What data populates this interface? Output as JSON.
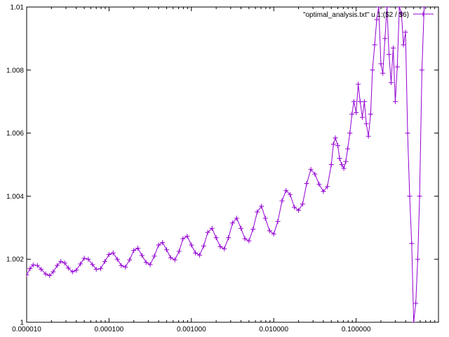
{
  "chart_data": {
    "type": "line",
    "title": "",
    "xlabel": "",
    "ylabel": "",
    "xscale": "log",
    "xlim": [
      1e-05,
      1
    ],
    "ylim": [
      1,
      1.01
    ],
    "grid": false,
    "legend_position": "top-right",
    "series_color": "#9400d3",
    "marker": "plus",
    "x_ticks": [
      {
        "value": 1e-05,
        "label": "0.000010"
      },
      {
        "value": 0.0001,
        "label": "0.000100"
      },
      {
        "value": 0.001,
        "label": "0.001000"
      },
      {
        "value": 0.01,
        "label": "0.010000"
      },
      {
        "value": 0.1,
        "label": "0.100000"
      }
    ],
    "y_ticks": [
      {
        "value": 1,
        "label": "1"
      },
      {
        "value": 1.002,
        "label": "1.002"
      },
      {
        "value": 1.004,
        "label": "1.004"
      },
      {
        "value": 1.006,
        "label": "1.006"
      },
      {
        "value": 1.008,
        "label": "1.008"
      },
      {
        "value": 1.01,
        "label": "1.01"
      }
    ],
    "series": [
      {
        "name": "\"optimal_analysis.txt\" u 1:($2 / $6)",
        "points": [
          [
            1e-05,
            1.0015
          ],
          [
            1.1e-05,
            1.0017
          ],
          [
            1.2e-05,
            1.00182
          ],
          [
            1.35e-05,
            1.0018
          ],
          [
            1.5e-05,
            1.00168
          ],
          [
            1.7e-05,
            1.00153
          ],
          [
            1.9e-05,
            1.00148
          ],
          [
            2.1e-05,
            1.0016
          ],
          [
            2.35e-05,
            1.0018
          ],
          [
            2.6e-05,
            1.00193
          ],
          [
            2.9e-05,
            1.00188
          ],
          [
            3.2e-05,
            1.00172
          ],
          [
            3.6e-05,
            1.0016
          ],
          [
            4e-05,
            1.00165
          ],
          [
            4.5e-05,
            1.00185
          ],
          [
            5e-05,
            1.00203
          ],
          [
            5.6e-05,
            1.002
          ],
          [
            6.3e-05,
            1.00183
          ],
          [
            7e-05,
            1.00168
          ],
          [
            7.9e-05,
            1.0017
          ],
          [
            8.9e-05,
            1.00193
          ],
          [
            0.0001,
            1.00215
          ],
          [
            0.000112,
            1.0022
          ],
          [
            0.000126,
            1.002
          ],
          [
            0.000141,
            1.0018
          ],
          [
            0.000158,
            1.00175
          ],
          [
            0.000178,
            1.00198
          ],
          [
            0.0002,
            1.00228
          ],
          [
            0.000224,
            1.00235
          ],
          [
            0.000251,
            1.00212
          ],
          [
            0.000282,
            1.0019
          ],
          [
            0.000316,
            1.00183
          ],
          [
            0.000355,
            1.0021
          ],
          [
            0.0004,
            1.00245
          ],
          [
            0.000447,
            1.00253
          ],
          [
            0.0005,
            1.0023
          ],
          [
            0.00056,
            1.00205
          ],
          [
            0.00063,
            1.00198
          ],
          [
            0.00071,
            1.00225
          ],
          [
            0.00079,
            1.00265
          ],
          [
            0.00089,
            1.00273
          ],
          [
            0.001,
            1.00245
          ],
          [
            0.00112,
            1.0022
          ],
          [
            0.00126,
            1.00213
          ],
          [
            0.00141,
            1.00242
          ],
          [
            0.00158,
            1.00285
          ],
          [
            0.00178,
            1.00298
          ],
          [
            0.002,
            1.00268
          ],
          [
            0.00224,
            1.0024
          ],
          [
            0.00251,
            1.00233
          ],
          [
            0.00282,
            1.00268
          ],
          [
            0.00316,
            1.00315
          ],
          [
            0.00355,
            1.0033
          ],
          [
            0.004,
            1.00298
          ],
          [
            0.00447,
            1.00265
          ],
          [
            0.005,
            1.00258
          ],
          [
            0.0056,
            1.00295
          ],
          [
            0.0063,
            1.0035
          ],
          [
            0.0071,
            1.00368
          ],
          [
            0.0079,
            1.0033
          ],
          [
            0.0089,
            1.0029
          ],
          [
            0.01,
            1.0028
          ],
          [
            0.0112,
            1.0032
          ],
          [
            0.0126,
            1.00385
          ],
          [
            0.0141,
            1.00418
          ],
          [
            0.0158,
            1.00405
          ],
          [
            0.0178,
            1.00365
          ],
          [
            0.02,
            1.00355
          ],
          [
            0.0224,
            1.00375
          ],
          [
            0.0251,
            1.0044
          ],
          [
            0.0282,
            1.00485
          ],
          [
            0.0316,
            1.0047
          ],
          [
            0.0355,
            1.00438
          ],
          [
            0.04,
            1.00415
          ],
          [
            0.0447,
            1.0043
          ],
          [
            0.05,
            1.005
          ],
          [
            0.053,
            1.00565
          ],
          [
            0.056,
            1.00585
          ],
          [
            0.06,
            1.0056
          ],
          [
            0.063,
            1.0052
          ],
          [
            0.067,
            1.005
          ],
          [
            0.071,
            1.00488
          ],
          [
            0.075,
            1.0051
          ],
          [
            0.079,
            1.0055
          ],
          [
            0.084,
            1.006
          ],
          [
            0.089,
            1.0066
          ],
          [
            0.094,
            1.007
          ],
          [
            0.1,
            1.00665
          ],
          [
            0.106,
            1.00755
          ],
          [
            0.112,
            1.007
          ],
          [
            0.119,
            1.0065
          ],
          [
            0.126,
            1.007
          ],
          [
            0.133,
            1.0063
          ],
          [
            0.141,
            1.0059
          ],
          [
            0.15,
            1.0066
          ],
          [
            0.158,
            1.008
          ],
          [
            0.168,
            1.0088
          ],
          [
            0.178,
            1.0096
          ],
          [
            0.188,
            1.01
          ],
          [
            0.2,
            1.0082
          ],
          [
            0.211,
            1.0079
          ],
          [
            0.224,
            1.009
          ],
          [
            0.237,
            1.01
          ],
          [
            0.251,
            1.0085
          ],
          [
            0.266,
            1.0076
          ],
          [
            0.282,
            1.0087
          ],
          [
            0.299,
            1.007
          ],
          [
            0.316,
            1.0081
          ],
          [
            0.335,
            1.01
          ],
          [
            0.355,
            1.0098
          ],
          [
            0.376,
            1.0088
          ],
          [
            0.398,
            1.0092
          ],
          [
            0.422,
            1.006
          ],
          [
            0.447,
            1.004
          ],
          [
            0.473,
            1.0025
          ],
          [
            0.5,
            1.0
          ],
          [
            0.53,
            1.0006
          ],
          [
            0.56,
            1.002
          ],
          [
            0.59,
            1.004
          ],
          [
            0.63,
            1.008
          ],
          [
            0.67,
            1.01
          ]
        ]
      }
    ]
  }
}
